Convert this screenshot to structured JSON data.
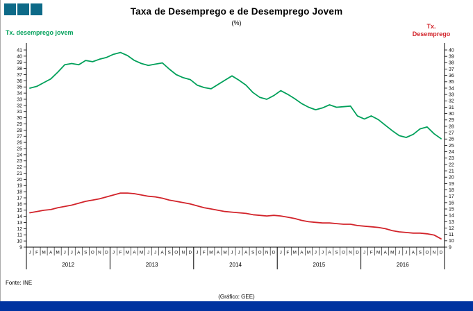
{
  "header": {
    "title": "Taxa de Desemprego e de Desemprego Jovem",
    "subtitle": "(%)"
  },
  "axes": {
    "left_label": "Tx. desemprego jovem",
    "right_label_line1": "Tx.",
    "right_label_line2": "Desemprego"
  },
  "footer": {
    "source": "Fonte: INE",
    "credit": "(Gráfico: GEE)"
  },
  "colors": {
    "logo": "#0d6a88",
    "bottom_bar": "#0033a0",
    "youth_line": "#00a05a",
    "total_line": "#d2232a",
    "axis": "#000000"
  },
  "chart_data": {
    "type": "line",
    "title": "Taxa de Desemprego e de Desemprego Jovem",
    "subtitle": "(%)",
    "grid": false,
    "legend_position": "top-corners",
    "x_month_labels": [
      "J",
      "F",
      "M",
      "A",
      "M",
      "J",
      "J",
      "A",
      "S",
      "O",
      "N",
      "D"
    ],
    "years": [
      "2012",
      "2013",
      "2014",
      "2015",
      "2016"
    ],
    "left_axis": {
      "label": "Tx. desemprego jovem",
      "min": 9,
      "max": 41,
      "tick_step": 1
    },
    "right_axis": {
      "label": "Tx. Desemprego",
      "min": 9,
      "max": 40,
      "tick_step": 1
    },
    "series": [
      {
        "name": "Tx. desemprego jovem",
        "axis": "left",
        "color": "#00a05a",
        "values": [
          34.8,
          35.1,
          35.7,
          36.3,
          37.4,
          38.6,
          38.8,
          38.6,
          39.3,
          39.1,
          39.5,
          39.8,
          40.3,
          40.6,
          40.1,
          39.3,
          38.8,
          38.5,
          38.7,
          38.9,
          37.9,
          37.0,
          36.5,
          36.2,
          35.3,
          34.9,
          34.7,
          35.4,
          36.1,
          36.8,
          36.1,
          35.3,
          34.1,
          33.3,
          33.0,
          33.6,
          34.4,
          33.8,
          33.1,
          32.3,
          31.7,
          31.3,
          31.6,
          32.1,
          31.7,
          31.8,
          31.9,
          30.3,
          29.8,
          30.3,
          29.7,
          28.8,
          27.9,
          27.1,
          26.8,
          27.3,
          28.2,
          28.5,
          27.4,
          26.6
        ]
      },
      {
        "name": "Tx. Desemprego",
        "axis": "right",
        "color": "#d2232a",
        "values": [
          14.4,
          14.6,
          14.8,
          14.9,
          15.2,
          15.4,
          15.6,
          15.9,
          16.2,
          16.4,
          16.6,
          16.9,
          17.2,
          17.5,
          17.5,
          17.4,
          17.2,
          17.0,
          16.9,
          16.7,
          16.4,
          16.2,
          16.0,
          15.8,
          15.5,
          15.2,
          15.0,
          14.8,
          14.6,
          14.5,
          14.4,
          14.3,
          14.1,
          14.0,
          13.9,
          14.0,
          13.9,
          13.7,
          13.5,
          13.2,
          13.0,
          12.9,
          12.8,
          12.8,
          12.7,
          12.6,
          12.6,
          12.4,
          12.3,
          12.2,
          12.1,
          11.9,
          11.6,
          11.4,
          11.3,
          11.2,
          11.2,
          11.1,
          10.9,
          10.3
        ]
      }
    ]
  }
}
